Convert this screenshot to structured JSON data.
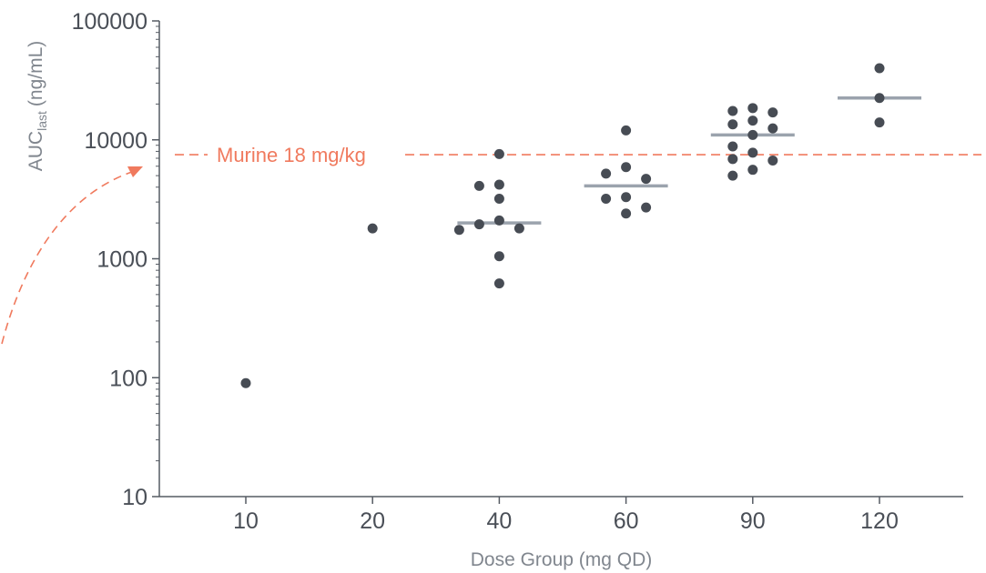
{
  "chart_data": {
    "type": "scatter",
    "title": "",
    "xlabel": "Dose Group (mg QD)",
    "ylabel_main": "AUC",
    "ylabel_sub": "last",
    "ylabel_unit": "(ng/mL)",
    "yscale": "log",
    "ylim": [
      10,
      100000
    ],
    "grid": false,
    "categories": [
      "10",
      "20",
      "40",
      "60",
      "90",
      "120"
    ],
    "y_tick_labels": [
      "10",
      "100",
      "1000",
      "10000",
      "100000"
    ],
    "reference_line": {
      "label": "Murine 18 mg/kg",
      "value": 7500,
      "color": "#f07a5e"
    },
    "point_color": "#474c54",
    "median_color": "#9ba3ad",
    "groups": [
      {
        "category": "10",
        "median": null,
        "points": [
          90
        ]
      },
      {
        "category": "20",
        "median": null,
        "points": [
          1800
        ]
      },
      {
        "category": "40",
        "median": 2000,
        "points": [
          7600,
          4100,
          4200,
          3200,
          2100,
          1800,
          1750,
          1950,
          1050,
          620
        ]
      },
      {
        "category": "60",
        "median": 4100,
        "points": [
          12000,
          5900,
          4700,
          5200,
          3200,
          3300,
          2400,
          2700
        ]
      },
      {
        "category": "90",
        "median": 11000,
        "points": [
          18500,
          17000,
          17500,
          12500,
          13500,
          14500,
          11000,
          8800,
          7800,
          6700,
          6900,
          5000,
          5600
        ]
      },
      {
        "category": "120",
        "median": 22500,
        "points": [
          40000,
          22500,
          14000
        ]
      }
    ]
  }
}
